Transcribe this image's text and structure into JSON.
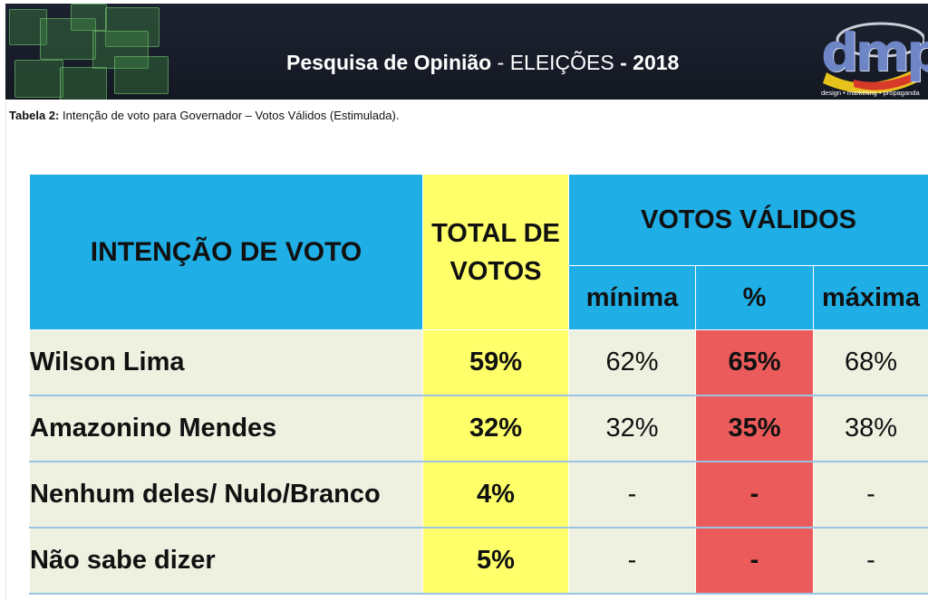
{
  "header": {
    "title_bold": "Pesquisa de Opinião",
    "title_sep": " - ",
    "title_light": "ELEIÇÕES",
    "title_year": "- 2018",
    "logo_text": "dmp",
    "logo_tagline": "design • marketing • propaganda"
  },
  "caption": {
    "label": "Tabela 2:",
    "text": " Intenção de voto para Governador – Votos Válidos (Estimulada)."
  },
  "table": {
    "col_intencao": "INTENÇÃO DE VOTO",
    "col_total_line1": "TOTAL DE",
    "col_total_line2": "VOTOS",
    "col_votos_validos": "VOTOS VÁLIDOS",
    "col_minima": "mínima",
    "col_pct": "%",
    "col_maxima": "máxima",
    "rows": [
      {
        "name": "Wilson Lima",
        "total": "59%",
        "minima": "62%",
        "pct": "65%",
        "maxima": "68%"
      },
      {
        "name": "Amazonino Mendes",
        "total": "32%",
        "minima": "32%",
        "pct": "35%",
        "maxima": "38%"
      },
      {
        "name": "Nenhum deles/ Nulo/Branco",
        "total": "4%",
        "minima": "-",
        "pct": "-",
        "maxima": "-"
      },
      {
        "name": "Não sabe dizer",
        "total": "5%",
        "minima": "-",
        "pct": "-",
        "maxima": "-"
      }
    ]
  },
  "colors": {
    "header_blue": "#1faee5",
    "total_yellow": "#ffff6a",
    "pct_red": "#ec5b5b",
    "row_bg": "#eef0e0",
    "banner_dark": "#1c2230"
  }
}
